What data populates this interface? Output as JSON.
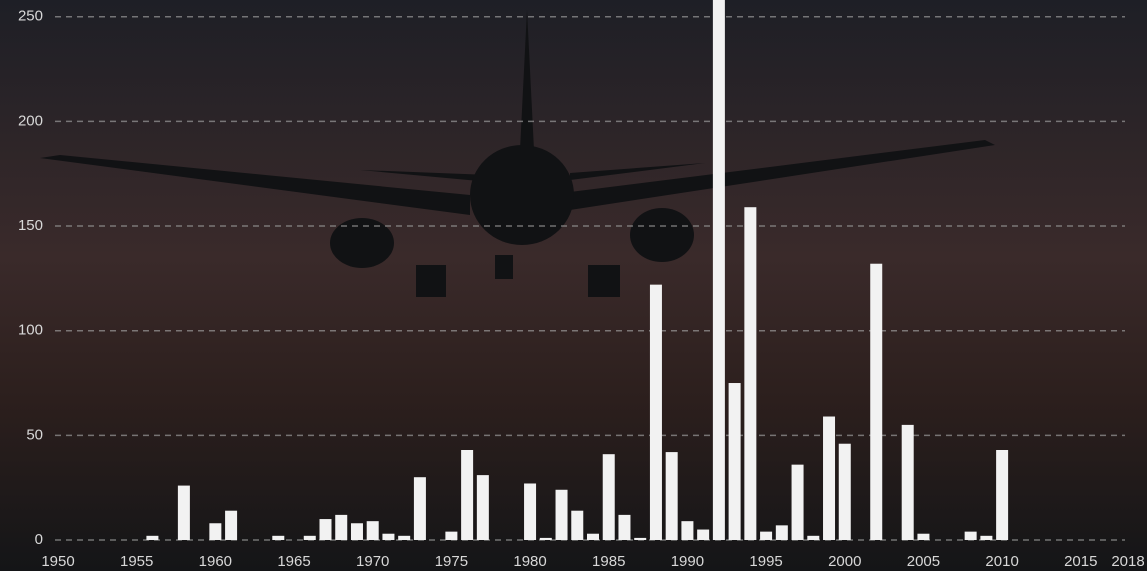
{
  "chart_data": {
    "type": "bar",
    "x": [
      1956,
      1958,
      1960,
      1961,
      1964,
      1966,
      1967,
      1968,
      1969,
      1970,
      1971,
      1972,
      1973,
      1975,
      1976,
      1977,
      1980,
      1981,
      1982,
      1983,
      1984,
      1985,
      1986,
      1987,
      1988,
      1989,
      1990,
      1991,
      1992,
      1993,
      1994,
      1995,
      1996,
      1997,
      1998,
      1999,
      2000,
      2002,
      2004,
      2005,
      2008,
      2009,
      2010
    ],
    "values": [
      2,
      26,
      8,
      14,
      2,
      2,
      10,
      12,
      8,
      9,
      3,
      2,
      30,
      4,
      43,
      31,
      27,
      1,
      24,
      14,
      3,
      41,
      12,
      1,
      122,
      42,
      9,
      5,
      258,
      75,
      159,
      4,
      7,
      36,
      2,
      59,
      46,
      132,
      55,
      3,
      4,
      2,
      43
    ],
    "color": "#f2f2f2",
    "xlim": [
      1950,
      2018
    ],
    "xticks": [
      1950,
      1955,
      1960,
      1965,
      1970,
      1975,
      1980,
      1985,
      1990,
      1995,
      2000,
      2005,
      2010,
      2015,
      2018
    ],
    "ylim": [
      0,
      258
    ],
    "yticks": [
      0,
      50,
      100,
      150,
      200,
      250
    ],
    "grid": true
  }
}
